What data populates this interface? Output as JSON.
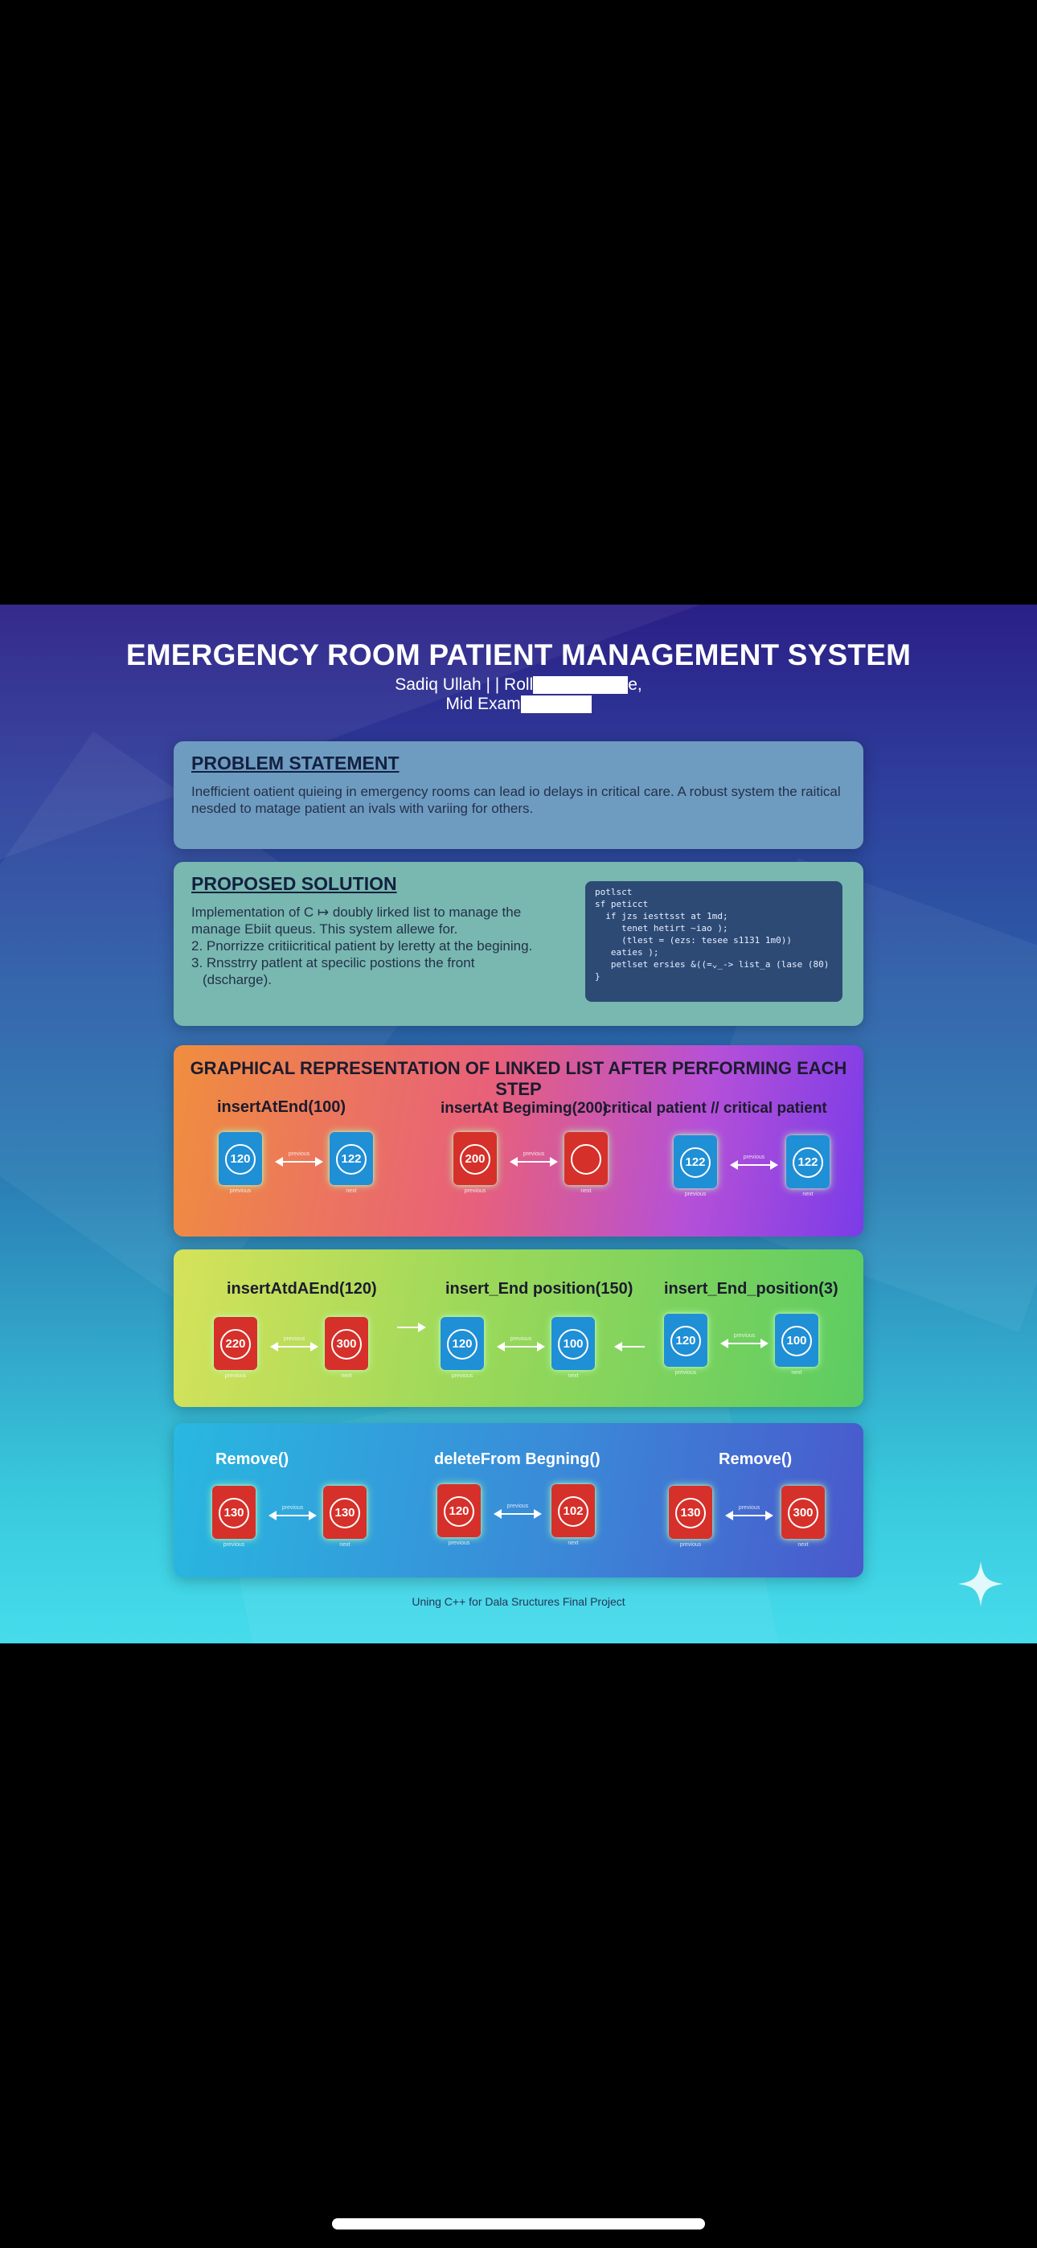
{
  "poster": {
    "title": "EMERGENCY ROOM PATIENT MANAGEMENT SYSTEM",
    "author_line": "Sadiq Ullah | | Roll",
    "author_suffix": "e,",
    "exam_line": "Mid Exam",
    "problem": {
      "heading": "PROBLEM STATEMENT",
      "text": "Inefficient oatient quieing in emergency rooms can lead io delays in critical care. A robust system the raitical nesded to matage patient an ivals with variing for others."
    },
    "solution": {
      "heading": "PROPOSED SOLUTION",
      "lines": [
        "Implementation of C ↦ doubly lirked list to manage the",
        "manage Ebiit queus. This system allewe for.",
        "2. Pnorrizze critiicritical patient by leretty at the begining.",
        "3. Rnsstrry patlent at specilic postions the front",
        "(dscharge)."
      ],
      "code": [
        "potlsct",
        "sf peticct",
        "  if jzs iesttsst at 1md;",
        "     tenet hetirt ~iao );",
        "     (tlest = (ezs: tesee s1131 1m0))",
        "",
        "   eaties );",
        "   petlset ersies &((=⌄_-> list_a (lase (80)",
        "}"
      ]
    },
    "graph": {
      "heading": "GRAPHICAL REPRESENTATION OF LINKED LIST AFTER PERFORMING EACH STEP",
      "row1_ops": [
        "insertAtEnd(100)",
        "insertAt Begiming(200)",
        "critical patient  // critical patient"
      ],
      "row1_nodes": [
        {
          "value": "120",
          "color": "blue",
          "foot": "previous"
        },
        {
          "value": "122",
          "color": "blue",
          "foot": "next"
        },
        {
          "value": "200",
          "color": "red",
          "foot": "previous"
        },
        {
          "value": "",
          "color": "red",
          "foot": "next"
        },
        {
          "value": "122",
          "color": "blue",
          "foot": "previous"
        },
        {
          "value": "122",
          "color": "blue",
          "foot": "next"
        }
      ]
    },
    "row2": {
      "ops": [
        "insertAtdAEnd(120)",
        "insert_End position(150)",
        "insert_End_position(3)"
      ],
      "nodes": [
        {
          "value": "220",
          "color": "red",
          "foot": "previous"
        },
        {
          "value": "300",
          "color": "red",
          "foot": "next"
        },
        {
          "value": "120",
          "color": "blue",
          "foot": "previous"
        },
        {
          "value": "100",
          "color": "blue",
          "foot": "next"
        },
        {
          "value": "120",
          "color": "blue",
          "foot": "previous"
        },
        {
          "value": "100",
          "color": "blue",
          "foot": "next"
        }
      ]
    },
    "row3": {
      "ops": [
        "Remove()",
        "deleteFrom Begning()",
        "Remove()"
      ],
      "nodes": [
        {
          "value": "130",
          "color": "red",
          "foot": "previous"
        },
        {
          "value": "130",
          "color": "red",
          "foot": "next"
        },
        {
          "value": "120",
          "color": "red",
          "foot": "previous"
        },
        {
          "value": "102",
          "color": "red",
          "foot": "next"
        },
        {
          "value": "130",
          "color": "red",
          "foot": "previous"
        },
        {
          "value": "300",
          "color": "red",
          "foot": "next"
        }
      ]
    },
    "arrow_label": "previous",
    "footer": "Uning C++ for Dala Sructures Final Project"
  }
}
